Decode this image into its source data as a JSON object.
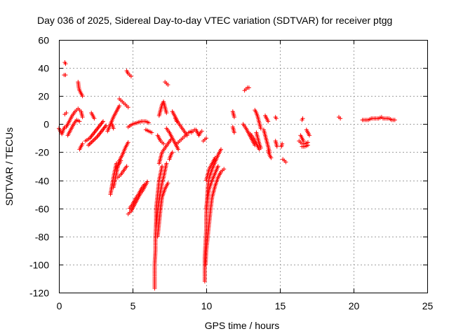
{
  "chart_data": {
    "type": "scatter",
    "title": "Day 036 of 2025, Sidereal Day-to-day VTEC variation (SDTVAR) for receiver ptgg",
    "xlabel": "GPS time / hours",
    "ylabel": "SDTVAR / TECUs",
    "xlim": [
      0,
      25
    ],
    "ylim": [
      -120,
      60
    ],
    "xticks": [
      0,
      5,
      10,
      15,
      20,
      25
    ],
    "yticks": [
      60,
      40,
      20,
      0,
      -20,
      -40,
      -60,
      -80,
      -100,
      -120
    ],
    "grid": true,
    "marker": "+",
    "color": "#ff0000",
    "tracks": [
      [
        [
          0.0,
          -3
        ],
        [
          0.1,
          -5
        ],
        [
          0.2,
          -7
        ],
        [
          0.3,
          -4
        ],
        [
          0.4,
          -2
        ]
      ],
      [
        [
          0.4,
          44
        ],
        [
          0.45,
          43
        ]
      ],
      [
        [
          0.35,
          35
        ],
        [
          0.45,
          35
        ]
      ],
      [
        [
          0.4,
          7
        ],
        [
          0.5,
          8
        ]
      ],
      [
        [
          0.5,
          -2
        ],
        [
          0.7,
          2
        ],
        [
          0.9,
          6
        ],
        [
          1.1,
          9
        ],
        [
          1.3,
          11
        ],
        [
          1.5,
          9
        ],
        [
          1.6,
          5
        ]
      ],
      [
        [
          0.6,
          -8
        ],
        [
          0.8,
          -4
        ],
        [
          1.0,
          0
        ],
        [
          1.2,
          3
        ],
        [
          1.4,
          2
        ]
      ],
      [
        [
          1.3,
          30
        ],
        [
          1.35,
          26
        ],
        [
          1.4,
          24
        ],
        [
          1.5,
          22
        ],
        [
          1.6,
          20
        ]
      ],
      [
        [
          1.4,
          -18
        ],
        [
          1.5,
          -16
        ],
        [
          1.6,
          -14
        ]
      ],
      [
        [
          1.8,
          -12
        ],
        [
          2.1,
          -10
        ],
        [
          2.4,
          -6
        ],
        [
          2.7,
          -2
        ],
        [
          3.0,
          2
        ]
      ],
      [
        [
          2.0,
          -15
        ],
        [
          2.3,
          -12
        ],
        [
          2.6,
          -9
        ],
        [
          2.9,
          -5
        ],
        [
          3.2,
          -1
        ]
      ],
      [
        [
          2.2,
          8
        ],
        [
          2.3,
          6
        ],
        [
          2.4,
          4
        ]
      ],
      [
        [
          3.3,
          -5
        ],
        [
          3.5,
          0
        ],
        [
          3.7,
          5
        ],
        [
          3.9,
          9
        ],
        [
          4.1,
          13
        ]
      ],
      [
        [
          3.6,
          0
        ],
        [
          3.7,
          -3
        ]
      ],
      [
        [
          3.5,
          -50
        ],
        [
          3.6,
          -44
        ],
        [
          3.7,
          -38
        ],
        [
          3.8,
          -33
        ],
        [
          3.9,
          -28
        ]
      ],
      [
        [
          3.7,
          -45
        ],
        [
          3.8,
          -40
        ],
        [
          3.9,
          -35
        ],
        [
          4.0,
          -30
        ],
        [
          4.2,
          -26
        ]
      ],
      [
        [
          3.9,
          -32
        ],
        [
          4.1,
          -26
        ],
        [
          4.3,
          -22
        ],
        [
          4.5,
          -17
        ],
        [
          4.7,
          -13
        ]
      ],
      [
        [
          4.0,
          -38
        ],
        [
          4.2,
          -36
        ],
        [
          4.4,
          -33
        ],
        [
          4.6,
          -30
        ]
      ],
      [
        [
          4.1,
          18
        ],
        [
          4.3,
          16
        ],
        [
          4.5,
          14
        ],
        [
          4.7,
          12
        ]
      ],
      [
        [
          4.6,
          38
        ],
        [
          4.7,
          36
        ],
        [
          4.8,
          35
        ],
        [
          4.9,
          34
        ]
      ],
      [
        [
          4.7,
          -64
        ],
        [
          4.9,
          -62
        ],
        [
          5.1,
          -58
        ],
        [
          5.3,
          -54
        ],
        [
          5.5,
          -50
        ],
        [
          5.7,
          -47
        ],
        [
          5.9,
          -43
        ],
        [
          6.0,
          -41
        ]
      ],
      [
        [
          4.8,
          -60
        ],
        [
          5.0,
          -57
        ],
        [
          5.2,
          -53
        ],
        [
          5.4,
          -50
        ],
        [
          5.6,
          -46
        ],
        [
          5.8,
          -43
        ]
      ],
      [
        [
          4.7,
          -2
        ],
        [
          5.0,
          0
        ],
        [
          5.3,
          1
        ],
        [
          5.6,
          2
        ],
        [
          5.9,
          2
        ],
        [
          6.1,
          1
        ]
      ],
      [
        [
          5.9,
          -4
        ],
        [
          6.1,
          -5
        ],
        [
          6.3,
          -6
        ]
      ],
      [
        [
          6.5,
          -117
        ],
        [
          6.5,
          -110
        ],
        [
          6.5,
          -100
        ],
        [
          6.55,
          -90
        ],
        [
          6.55,
          -80
        ],
        [
          6.6,
          -70
        ],
        [
          6.6,
          -60
        ],
        [
          6.7,
          -50
        ],
        [
          6.8,
          -40
        ],
        [
          6.9,
          -35
        ],
        [
          7.0,
          -30
        ]
      ],
      [
        [
          6.6,
          -72
        ],
        [
          6.7,
          -62
        ],
        [
          6.8,
          -54
        ],
        [
          6.9,
          -48
        ],
        [
          7.0,
          -42
        ],
        [
          7.1,
          -38
        ],
        [
          7.2,
          -33
        ],
        [
          7.3,
          -28
        ]
      ],
      [
        [
          6.7,
          -80
        ],
        [
          6.8,
          -70
        ],
        [
          6.9,
          -60
        ],
        [
          7.0,
          -52
        ],
        [
          7.2,
          -46
        ],
        [
          7.4,
          -42
        ]
      ],
      [
        [
          6.8,
          -28
        ],
        [
          6.9,
          -24
        ],
        [
          7.0,
          -20
        ],
        [
          7.2,
          -17
        ],
        [
          7.4,
          -14
        ],
        [
          7.6,
          -11
        ]
      ],
      [
        [
          6.8,
          6
        ],
        [
          6.9,
          10
        ],
        [
          7.0,
          14
        ],
        [
          7.1,
          16
        ],
        [
          7.2,
          12
        ],
        [
          7.3,
          8
        ]
      ],
      [
        [
          7.2,
          30
        ],
        [
          7.3,
          29
        ],
        [
          7.4,
          28
        ]
      ],
      [
        [
          6.7,
          -8
        ],
        [
          6.9,
          -12
        ],
        [
          7.1,
          -14
        ]
      ],
      [
        [
          7.3,
          -3
        ],
        [
          7.5,
          -6
        ],
        [
          7.7,
          -10
        ],
        [
          7.9,
          -14
        ],
        [
          8.1,
          -18
        ]
      ],
      [
        [
          7.5,
          -25
        ],
        [
          7.6,
          -22
        ],
        [
          7.7,
          -20
        ]
      ],
      [
        [
          7.7,
          9
        ],
        [
          7.8,
          7
        ],
        [
          7.9,
          5
        ],
        [
          8.0,
          3
        ],
        [
          8.1,
          1
        ],
        [
          8.3,
          -2
        ],
        [
          8.5,
          -5
        ],
        [
          8.7,
          -8
        ]
      ],
      [
        [
          7.9,
          4
        ],
        [
          8.0,
          2
        ]
      ],
      [
        [
          8.0,
          -14
        ],
        [
          8.2,
          -12
        ],
        [
          8.4,
          -10
        ],
        [
          8.6,
          -8
        ],
        [
          8.8,
          -6
        ],
        [
          9.0,
          -5
        ]
      ],
      [
        [
          9.3,
          -4
        ],
        [
          9.4,
          -6
        ],
        [
          9.5,
          -8
        ],
        [
          9.6,
          -6
        ],
        [
          9.7,
          -5
        ]
      ],
      [
        [
          9.0,
          -6
        ],
        [
          9.2,
          -4
        ]
      ],
      [
        [
          9.9,
          -112
        ],
        [
          9.9,
          -105
        ],
        [
          9.9,
          -95
        ],
        [
          9.95,
          -85
        ],
        [
          10.0,
          -75
        ],
        [
          10.0,
          -65
        ],
        [
          10.05,
          -55
        ],
        [
          10.1,
          -45
        ],
        [
          10.2,
          -38
        ],
        [
          10.4,
          -32
        ],
        [
          10.6,
          -27
        ],
        [
          10.8,
          -22
        ],
        [
          11.0,
          -18
        ]
      ],
      [
        [
          9.95,
          -100
        ],
        [
          10.0,
          -90
        ],
        [
          10.1,
          -80
        ],
        [
          10.2,
          -70
        ],
        [
          10.3,
          -60
        ],
        [
          10.4,
          -52
        ],
        [
          10.6,
          -44
        ],
        [
          10.8,
          -38
        ],
        [
          11.0,
          -34
        ],
        [
          11.2,
          -32
        ]
      ],
      [
        [
          10.0,
          -60
        ],
        [
          10.1,
          -52
        ],
        [
          10.2,
          -46
        ],
        [
          10.4,
          -40
        ],
        [
          10.6,
          -35
        ],
        [
          10.8,
          -30
        ]
      ],
      [
        [
          10.0,
          -40
        ],
        [
          10.1,
          -36
        ],
        [
          10.2,
          -32
        ],
        [
          10.4,
          -28
        ],
        [
          10.6,
          -24
        ]
      ],
      [
        [
          9.8,
          -12
        ],
        [
          10.0,
          -10
        ]
      ],
      [
        [
          11.8,
          9
        ],
        [
          11.85,
          7
        ],
        [
          11.9,
          5
        ]
      ],
      [
        [
          11.8,
          -2
        ],
        [
          11.85,
          -4
        ],
        [
          11.9,
          -6
        ]
      ],
      [
        [
          12.6,
          24
        ],
        [
          12.7,
          25
        ],
        [
          12.8,
          26
        ],
        [
          12.9,
          26
        ]
      ],
      [
        [
          12.5,
          0
        ],
        [
          12.7,
          -3
        ],
        [
          12.9,
          -7
        ],
        [
          13.1,
          -11
        ],
        [
          13.3,
          -15
        ]
      ],
      [
        [
          13.0,
          -7
        ],
        [
          13.2,
          -10
        ],
        [
          13.4,
          -14
        ],
        [
          13.6,
          -18
        ]
      ],
      [
        [
          13.3,
          10
        ],
        [
          13.4,
          8
        ],
        [
          13.5,
          5
        ],
        [
          13.6,
          1
        ],
        [
          13.7,
          -3
        ]
      ],
      [
        [
          13.4,
          -6
        ],
        [
          13.5,
          -10
        ],
        [
          13.6,
          -14
        ],
        [
          13.7,
          -17
        ]
      ],
      [
        [
          13.9,
          -4
        ],
        [
          14.0,
          -8
        ],
        [
          14.1,
          -12
        ],
        [
          14.2,
          -16
        ],
        [
          14.3,
          -20
        ]
      ],
      [
        [
          14.0,
          6
        ],
        [
          14.1,
          4
        ],
        [
          14.2,
          2
        ]
      ],
      [
        [
          14.2,
          -19
        ],
        [
          14.3,
          -22
        ],
        [
          14.4,
          -24
        ]
      ],
      [
        [
          14.7,
          5
        ],
        [
          14.75,
          4
        ]
      ],
      [
        [
          14.7,
          -12
        ],
        [
          14.8,
          -16
        ]
      ],
      [
        [
          15.1,
          -16
        ],
        [
          15.15,
          -14
        ]
      ],
      [
        [
          15.2,
          -25
        ],
        [
          15.3,
          -26
        ],
        [
          15.4,
          -27
        ]
      ],
      [
        [
          16.4,
          -8
        ],
        [
          16.5,
          -10
        ],
        [
          16.6,
          -12
        ]
      ],
      [
        [
          16.5,
          3
        ],
        [
          16.55,
          4
        ]
      ],
      [
        [
          16.3,
          -12
        ],
        [
          16.5,
          -14
        ],
        [
          16.7,
          -14
        ],
        [
          16.9,
          -13
        ]
      ],
      [
        [
          16.5,
          -16
        ],
        [
          16.7,
          -16
        ],
        [
          16.9,
          -15
        ]
      ],
      [
        [
          16.8,
          -4
        ],
        [
          16.9,
          -6
        ],
        [
          17.0,
          -8
        ]
      ],
      [
        [
          19.0,
          5
        ],
        [
          19.1,
          4
        ]
      ],
      [
        [
          20.6,
          3
        ],
        [
          20.8,
          3
        ],
        [
          21.0,
          3
        ],
        [
          21.2,
          4
        ]
      ],
      [
        [
          21.3,
          4
        ],
        [
          21.5,
          4
        ],
        [
          21.7,
          4
        ],
        [
          21.9,
          5
        ]
      ],
      [
        [
          22.0,
          4
        ],
        [
          22.2,
          4
        ],
        [
          22.4,
          4
        ],
        [
          22.6,
          3
        ],
        [
          22.8,
          3
        ]
      ]
    ]
  }
}
